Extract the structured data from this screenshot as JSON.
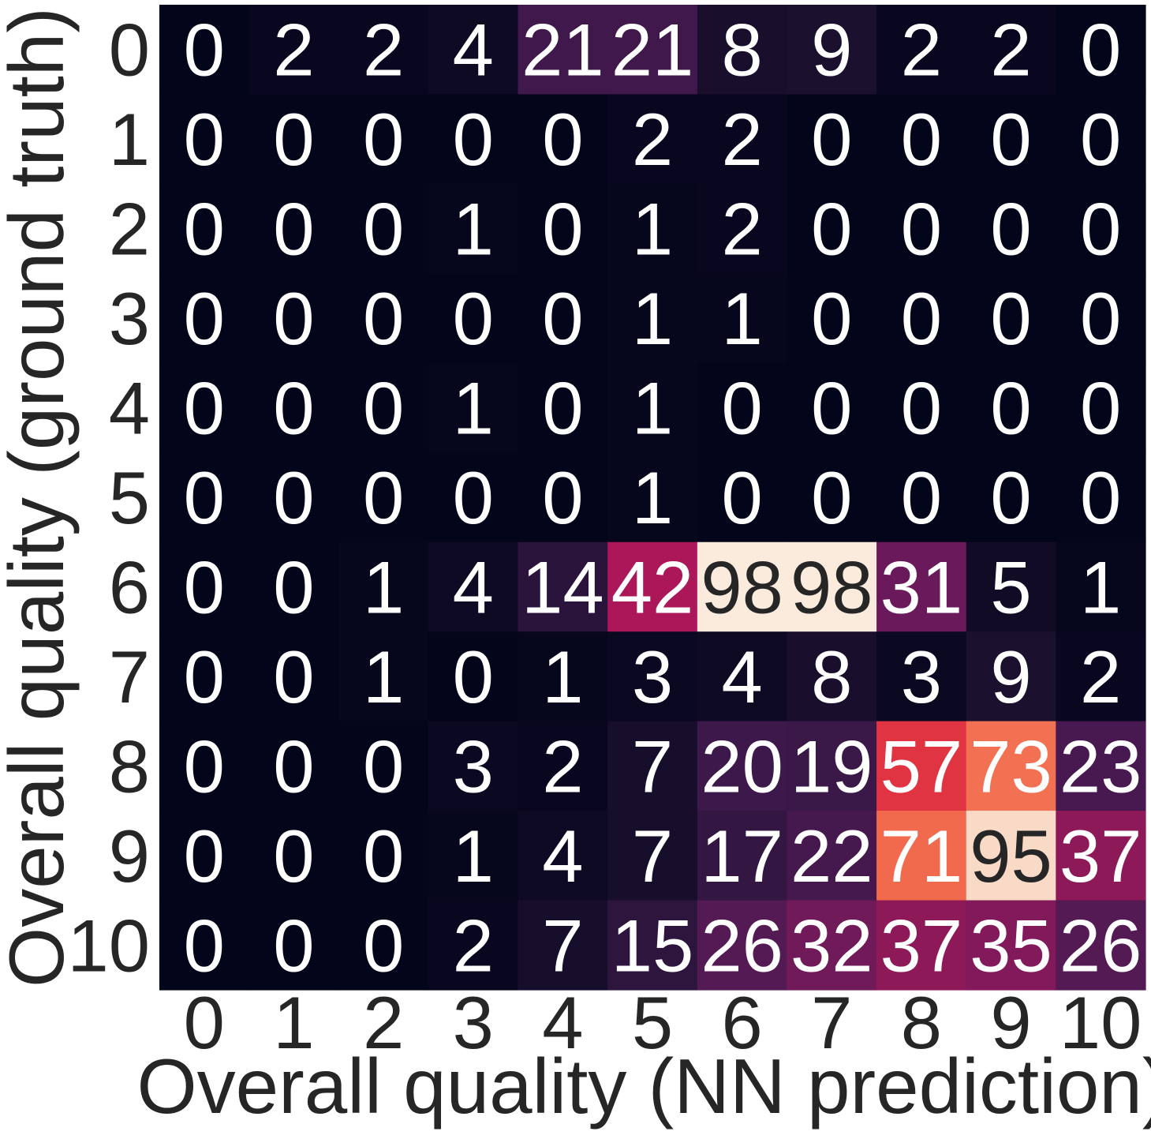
{
  "chart_data": {
    "type": "heatmap",
    "title": "",
    "xlabel": "Overall quality (NN prediction)",
    "ylabel": "Overall quality (ground truth)",
    "x_categories": [
      "0",
      "1",
      "2",
      "3",
      "4",
      "5",
      "6",
      "7",
      "8",
      "9",
      "10"
    ],
    "y_categories": [
      "0",
      "1",
      "2",
      "3",
      "4",
      "5",
      "6",
      "7",
      "8",
      "9",
      "10"
    ],
    "values": [
      [
        0,
        2,
        2,
        4,
        21,
        21,
        8,
        9,
        2,
        2,
        0
      ],
      [
        0,
        0,
        0,
        0,
        0,
        2,
        2,
        0,
        0,
        0,
        0
      ],
      [
        0,
        0,
        0,
        1,
        0,
        1,
        2,
        0,
        0,
        0,
        0
      ],
      [
        0,
        0,
        0,
        0,
        0,
        1,
        1,
        0,
        0,
        0,
        0
      ],
      [
        0,
        0,
        0,
        1,
        0,
        1,
        0,
        0,
        0,
        0,
        0
      ],
      [
        0,
        0,
        0,
        0,
        0,
        1,
        0,
        0,
        0,
        0,
        0
      ],
      [
        0,
        0,
        1,
        4,
        14,
        42,
        98,
        98,
        31,
        5,
        1
      ],
      [
        0,
        0,
        1,
        0,
        1,
        3,
        4,
        8,
        3,
        9,
        2
      ],
      [
        0,
        0,
        0,
        3,
        2,
        7,
        20,
        19,
        57,
        73,
        23
      ],
      [
        0,
        0,
        0,
        1,
        4,
        7,
        17,
        22,
        71,
        95,
        37
      ],
      [
        0,
        0,
        0,
        2,
        7,
        15,
        26,
        32,
        37,
        35,
        26
      ]
    ],
    "value_range": [
      0,
      98
    ],
    "colormap": "rocket",
    "colorbar": false,
    "grid": false,
    "legend": "none",
    "colors": {
      "label_text": "#262626",
      "annotation_light": "#ffffff",
      "annotation_dark": "#262626"
    }
  }
}
